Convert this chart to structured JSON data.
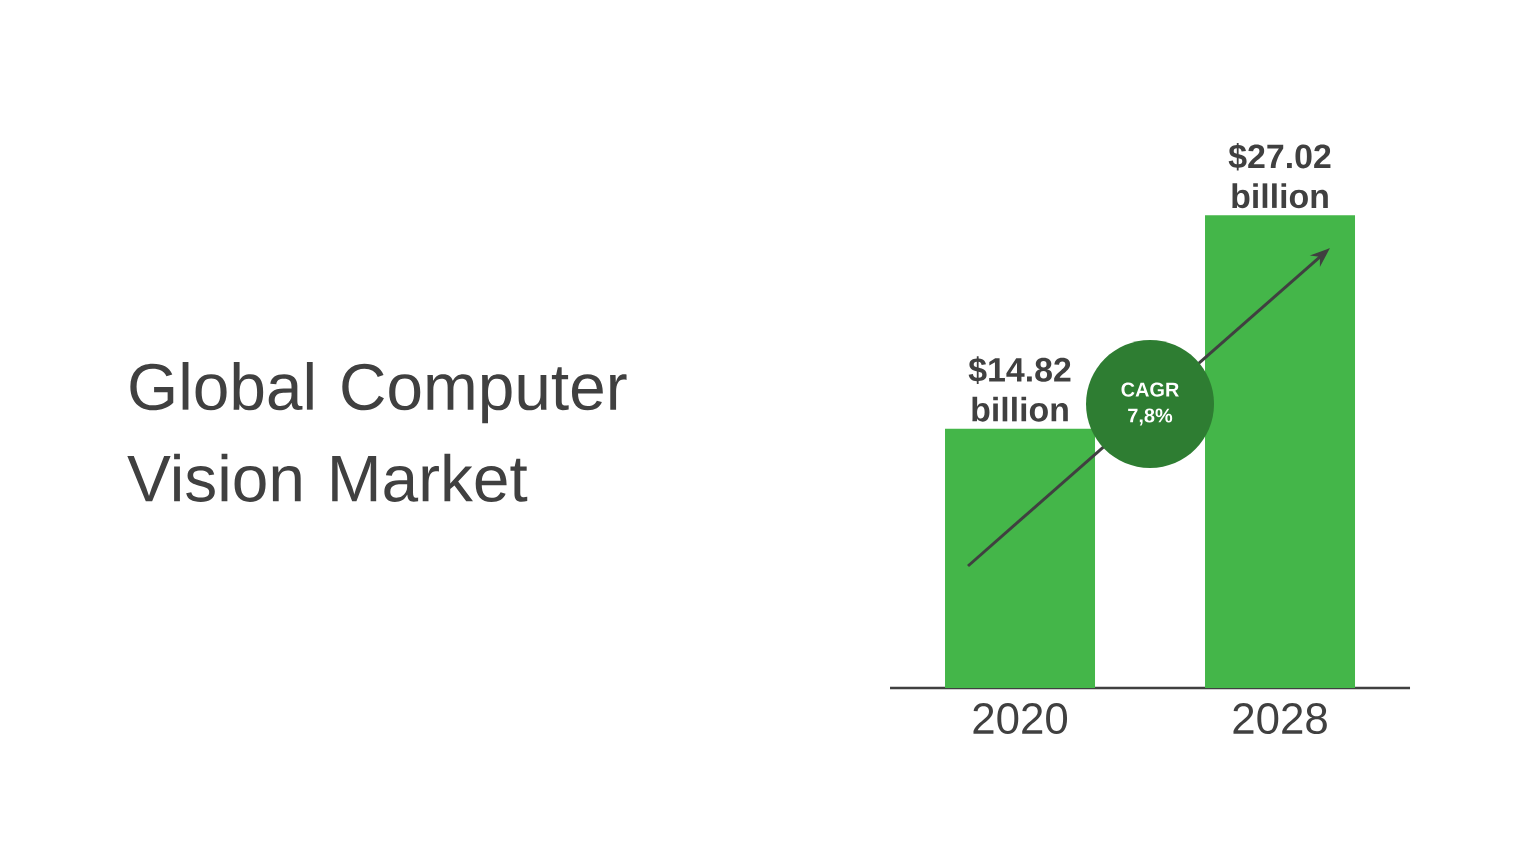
{
  "chart_data": {
    "type": "bar",
    "title": "Global Computer Vision Market",
    "categories": [
      "2020",
      "2028"
    ],
    "values": [
      14.82,
      27.02
    ],
    "value_labels": [
      "$14.82 billion",
      "$27.02 billion"
    ],
    "color": "#44b649",
    "annotations": [
      "CAGR 7,8%"
    ]
  }
}
